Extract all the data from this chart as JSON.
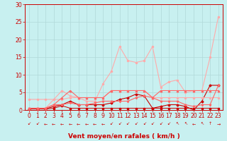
{
  "background_color": "#c8f0f0",
  "grid_color": "#b0d8d8",
  "xlabel": "Vent moyen/en rafales ( km/h )",
  "xlabel_color": "#cc0000",
  "xlabel_fontsize": 6.5,
  "tick_color": "#cc0000",
  "tick_fontsize": 5.5,
  "arrow_color": "#cc0000",
  "xlim": [
    -0.5,
    23.5
  ],
  "ylim": [
    0,
    30
  ],
  "yticks": [
    0,
    5,
    10,
    15,
    20,
    25,
    30
  ],
  "xticks": [
    0,
    1,
    2,
    3,
    4,
    5,
    6,
    7,
    8,
    9,
    10,
    11,
    12,
    13,
    14,
    15,
    16,
    17,
    18,
    19,
    20,
    21,
    22,
    23
  ],
  "series": [
    {
      "x": [
        0,
        1,
        2,
        3,
        4,
        5,
        6,
        7,
        8,
        9,
        10,
        11,
        12,
        13,
        14,
        15,
        16,
        17,
        18,
        19,
        20,
        21,
        22,
        23
      ],
      "y": [
        0.3,
        0.3,
        0.3,
        0.5,
        1.2,
        0.5,
        0.5,
        0.5,
        0.5,
        0.5,
        0.5,
        0.5,
        0.5,
        0.5,
        0.5,
        0.5,
        0.5,
        0.5,
        0.5,
        0.5,
        0.5,
        0.5,
        0.5,
        0.5
      ],
      "color": "#cc0000",
      "lw": 0.7,
      "marker": "s",
      "ms": 1.5
    },
    {
      "x": [
        0,
        1,
        2,
        3,
        4,
        5,
        6,
        7,
        8,
        9,
        10,
        11,
        12,
        13,
        14,
        15,
        16,
        17,
        18,
        19,
        20,
        21,
        22,
        23
      ],
      "y": [
        0.3,
        0.3,
        0.3,
        1.0,
        1.5,
        2.5,
        1.5,
        1.5,
        1.5,
        1.5,
        2.0,
        3.0,
        3.5,
        4.5,
        4.0,
        0.5,
        1.0,
        1.5,
        1.5,
        1.0,
        0.0,
        2.5,
        7.0,
        7.0
      ],
      "color": "#cc0000",
      "lw": 0.8,
      "marker": "D",
      "ms": 1.5
    },
    {
      "x": [
        0,
        1,
        2,
        3,
        4,
        5,
        6,
        7,
        8,
        9,
        10,
        11,
        12,
        13,
        14,
        15,
        16,
        17,
        18,
        19,
        20,
        21,
        22,
        23
      ],
      "y": [
        3.0,
        3.0,
        3.0,
        3.0,
        3.0,
        3.5,
        3.5,
        3.5,
        3.5,
        3.5,
        5.5,
        5.5,
        5.5,
        5.5,
        5.5,
        3.5,
        3.5,
        3.5,
        3.5,
        3.5,
        3.5,
        3.5,
        3.5,
        3.5
      ],
      "color": "#ffaaaa",
      "lw": 0.8,
      "marker": "o",
      "ms": 1.5
    },
    {
      "x": [
        0,
        1,
        2,
        3,
        4,
        5,
        6,
        7,
        8,
        9,
        10,
        11,
        12,
        13,
        14,
        15,
        16,
        17,
        18,
        19,
        20,
        21,
        22,
        23
      ],
      "y": [
        0.5,
        0.5,
        0.5,
        3.0,
        5.5,
        4.0,
        3.5,
        2.5,
        2.5,
        7.5,
        11.0,
        18.0,
        14.0,
        13.5,
        14.0,
        18.0,
        6.5,
        8.0,
        8.5,
        5.0,
        5.5,
        5.5,
        15.0,
        26.5
      ],
      "color": "#ffaaaa",
      "lw": 0.8,
      "marker": "o",
      "ms": 1.5
    },
    {
      "x": [
        0,
        1,
        2,
        3,
        4,
        5,
        6,
        7,
        8,
        9,
        10,
        11,
        12,
        13,
        14,
        15,
        16,
        17,
        18,
        19,
        20,
        21,
        22,
        23
      ],
      "y": [
        0.5,
        0.5,
        0.5,
        1.5,
        3.5,
        5.5,
        3.5,
        3.5,
        3.5,
        3.5,
        5.5,
        5.5,
        5.5,
        5.5,
        5.5,
        3.5,
        5.5,
        5.5,
        5.5,
        5.5,
        5.5,
        5.5,
        5.5,
        5.5
      ],
      "color": "#ff6666",
      "lw": 0.8,
      "marker": "^",
      "ms": 1.8
    },
    {
      "x": [
        0,
        1,
        2,
        3,
        4,
        5,
        6,
        7,
        8,
        9,
        10,
        11,
        12,
        13,
        14,
        15,
        16,
        17,
        18,
        19,
        20,
        21,
        22,
        23
      ],
      "y": [
        0.5,
        0.5,
        0.5,
        1.5,
        1.5,
        2.0,
        1.5,
        1.5,
        2.0,
        2.5,
        2.5,
        2.5,
        2.5,
        3.5,
        4.0,
        3.5,
        2.5,
        2.5,
        2.5,
        1.5,
        1.0,
        1.5,
        1.5,
        7.0
      ],
      "color": "#ff6666",
      "lw": 0.8,
      "marker": "v",
      "ms": 1.8
    }
  ],
  "arrows": {
    "x": [
      0,
      1,
      2,
      3,
      4,
      5,
      6,
      7,
      8,
      9,
      10,
      11,
      12,
      13,
      14,
      15,
      16,
      17,
      18,
      19,
      20,
      21,
      22,
      23
    ],
    "directions": [
      "SW",
      "SW",
      "W",
      "W",
      "W",
      "W",
      "W",
      "W",
      "W",
      "W",
      "SW",
      "SW",
      "SW",
      "SW",
      "SW",
      "SW",
      "SW",
      "SW",
      "NW",
      "NW",
      "W",
      "NW",
      "N",
      "E"
    ]
  },
  "arrow_text_map": {
    "N": "↑",
    "S": "↓",
    "E": "→",
    "W": "←",
    "NW": "↖",
    "NE": "↗",
    "SW": "↙",
    "SE": "↘"
  }
}
